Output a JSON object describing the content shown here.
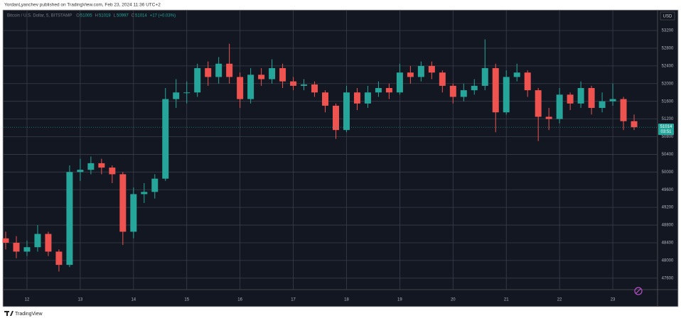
{
  "header": {
    "attribution": "YordanLyanchev published on TradingView.com, Feb 23, 2024 11:36 UTC+2"
  },
  "chart_data": {
    "type": "candlestick",
    "currency": "USD",
    "legend": {
      "symbol": "Bitcoin / U.S. Dollar, 5, BITSTAMP",
      "ohlc": [
        {
          "label": "O",
          "value": 51005
        },
        {
          "label": "H",
          "value": 51019
        },
        {
          "label": "L",
          "value": 50997
        },
        {
          "label": "C",
          "value": 51014
        }
      ],
      "change": "+17 (+0.03%)"
    },
    "countdown": "03:51",
    "up_color": "#26a69a",
    "down_color": "#ef5350",
    "x": [
      11.6,
      11.8,
      12.0,
      12.2,
      12.4,
      12.6,
      12.8,
      13.0,
      13.2,
      13.4,
      13.6,
      13.8,
      14.0,
      14.2,
      14.4,
      14.6,
      14.8,
      15.0,
      15.2,
      15.4,
      15.6,
      15.8,
      16.0,
      16.2,
      16.4,
      16.6,
      16.8,
      17.0,
      17.2,
      17.4,
      17.6,
      17.8,
      18.0,
      18.2,
      18.4,
      18.6,
      18.8,
      19.0,
      19.2,
      19.4,
      19.6,
      19.8,
      20.0,
      20.2,
      20.4,
      20.6,
      20.8,
      21.0,
      21.2,
      21.4,
      21.6,
      21.8,
      22.0,
      22.2,
      22.4,
      22.6,
      22.8,
      23.0,
      23.2,
      23.4
    ],
    "open": [
      48500,
      48400,
      48200,
      48300,
      48600,
      48200,
      47900,
      50000,
      50050,
      50200,
      50100,
      49950,
      48650,
      49500,
      49550,
      49850,
      51650,
      51800,
      51800,
      52350,
      52150,
      52450,
      52150,
      51650,
      52200,
      52100,
      52350,
      52050,
      51950,
      51980,
      51800,
      51500,
      50950,
      51800,
      51550,
      51800,
      51900,
      51800,
      52250,
      52150,
      52400,
      52250,
      51950,
      51700,
      51850,
      51950,
      52350,
      51350,
      52150,
      52250,
      51850,
      51250,
      51200,
      51750,
      51550,
      51900,
      51450,
      51600,
      51650,
      51150
    ],
    "high": [
      48650,
      48550,
      48450,
      48800,
      48650,
      48250,
      50150,
      50300,
      50350,
      50300,
      50150,
      50000,
      49650,
      49750,
      49950,
      51900,
      52100,
      52050,
      52450,
      52500,
      52600,
      52900,
      52250,
      52350,
      52350,
      52550,
      52450,
      52150,
      52100,
      52050,
      51850,
      51550,
      51950,
      51900,
      51950,
      52050,
      52000,
      52450,
      52400,
      52500,
      52500,
      52300,
      52000,
      52000,
      52100,
      53000,
      52450,
      52300,
      52450,
      52300,
      51900,
      51450,
      51900,
      51800,
      52050,
      51950,
      51800,
      52000,
      51700,
      51300
    ],
    "low": [
      48250,
      48050,
      48100,
      48200,
      48100,
      47750,
      47850,
      49800,
      49950,
      49950,
      49750,
      48350,
      48500,
      49300,
      49400,
      49800,
      51450,
      51550,
      51700,
      51950,
      52000,
      52000,
      51450,
      51550,
      51950,
      52000,
      51900,
      51850,
      51850,
      51700,
      51350,
      50750,
      50900,
      51400,
      51450,
      51700,
      51650,
      51750,
      52000,
      52050,
      52100,
      51800,
      51550,
      51600,
      51750,
      51850,
      50900,
      51300,
      52050,
      51700,
      50700,
      50950,
      51100,
      51400,
      51450,
      51300,
      51350,
      51500,
      50950,
      50950
    ],
    "close": [
      48400,
      48200,
      48300,
      48600,
      48200,
      47900,
      50000,
      50050,
      50200,
      50100,
      49950,
      48650,
      49500,
      49550,
      49850,
      51650,
      51800,
      51800,
      52350,
      52150,
      52450,
      52150,
      51650,
      52200,
      52100,
      52350,
      52050,
      51950,
      51980,
      51800,
      51500,
      50950,
      51800,
      51550,
      51800,
      51900,
      51800,
      52250,
      52150,
      52400,
      52250,
      51950,
      51700,
      51850,
      51950,
      52350,
      51350,
      52150,
      52250,
      51850,
      51250,
      51200,
      51750,
      51550,
      51900,
      51450,
      51600,
      51650,
      51150,
      51014
    ],
    "xlim": [
      11.56,
      23.84
    ],
    "xticks": [
      12,
      13,
      14,
      15,
      16,
      17,
      18,
      19,
      20,
      21,
      22,
      23
    ],
    "ylim": [
      47340,
      53650
    ],
    "yticks": [
      47600,
      48000,
      48400,
      48800,
      49200,
      49600,
      50000,
      50400,
      50800,
      51200,
      51600,
      52000,
      52400,
      52800,
      53200
    ],
    "grid": true
  },
  "footer": {
    "brand": "TradingView"
  }
}
